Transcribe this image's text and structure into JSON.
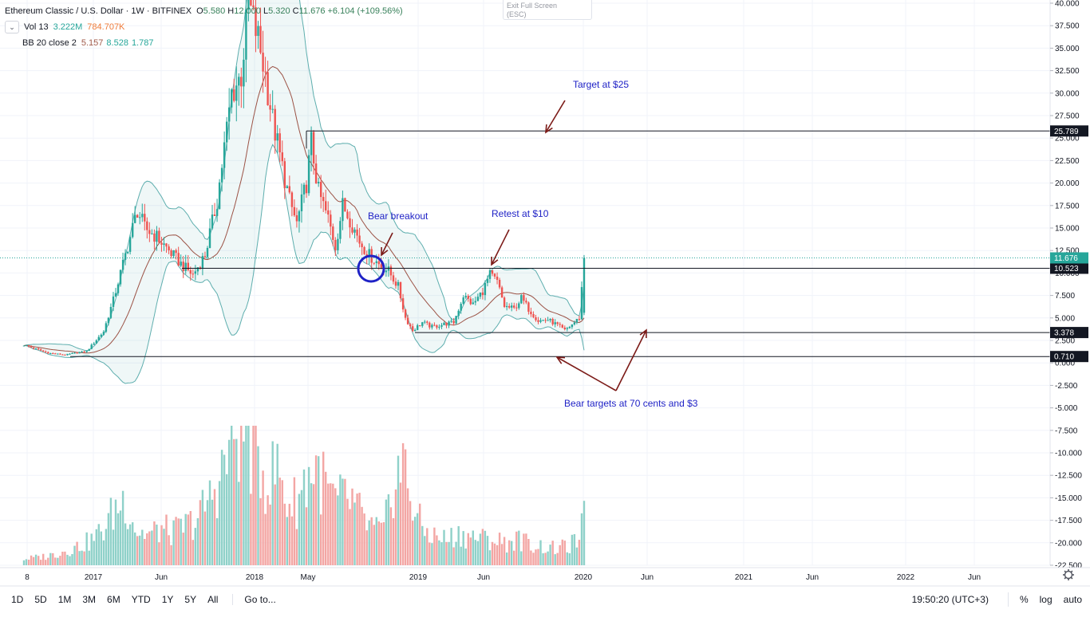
{
  "legend": {
    "symbol": "Ethereum Classic / U.S. Dollar · 1W · BITFINEX",
    "ohlc": {
      "o_label": "O",
      "o": "5.580",
      "h_label": "H",
      "h": "12.000",
      "l_label": "L",
      "l": "5.320",
      "c_label": "C",
      "c": "11.676",
      "change": "+6.104 (+109.56%)"
    },
    "vol_label": "Vol 13",
    "vol_value_1": "3.222M",
    "vol_value_2": "784.707K",
    "bb_label": "BB 20 close 2",
    "bb_basis": "5.157",
    "bb_upper": "8.528",
    "bb_lower": "1.787"
  },
  "exit_full_screen": {
    "line1": "Exit Full Screen",
    "line2": "(ESC)"
  },
  "bottom": {
    "timeframes": [
      "1D",
      "5D",
      "1M",
      "3M",
      "6M",
      "YTD",
      "1Y",
      "5Y",
      "All"
    ],
    "goto": "Go to...",
    "clock": "19:50:20 (UTC+3)",
    "percent": "%",
    "log": "log",
    "auto": "auto"
  },
  "colors": {
    "up": "#26a69a",
    "down": "#ef5350",
    "up_vol": "#8fd1c9",
    "down_vol": "#f3a6a4",
    "bb_band": "#5eaeae",
    "bb_basis": "#9b5245",
    "annotation": "#1f22c6",
    "arrow": "#7c1b18"
  },
  "chart_data": {
    "type": "candlestick",
    "ylim": [
      -22.5,
      40
    ],
    "yticks": [
      "40.000",
      "37.500",
      "35.000",
      "32.500",
      "30.000",
      "27.500",
      "25.000",
      "22.500",
      "20.000",
      "17.500",
      "15.000",
      "12.500",
      "10.000",
      "7.500",
      "5.000",
      "2.500",
      "0.000",
      "-2.500",
      "-5.000",
      "-7.500",
      "-10.000",
      "-12.500",
      "-15.000",
      "-17.500",
      "-20.000",
      "-22.500"
    ],
    "xticks": [
      "8",
      "2017",
      "Jun",
      "2018",
      "May",
      "2019",
      "Jun",
      "2020",
      "Jun",
      "2021",
      "Jun",
      "2022",
      "Jun"
    ],
    "horizontal_levels": [
      {
        "value": 25.789,
        "label": "25.789"
      },
      {
        "value": 10.523,
        "label": "10.523"
      },
      {
        "value": 3.378,
        "label": "3.378"
      },
      {
        "value": 0.71,
        "label": "0.710"
      }
    ],
    "last_price": {
      "value": 11.676,
      "label": "11.676"
    },
    "annotations": [
      {
        "text": "Target at $25"
      },
      {
        "text": "Bear breakout"
      },
      {
        "text": "Retest at $10"
      },
      {
        "text": "Bear targets at 70 cents and $3"
      }
    ],
    "price_keypoints": [
      [
        0,
        2.0
      ],
      [
        10,
        1.1
      ],
      [
        17,
        0.9
      ],
      [
        26,
        1.3
      ],
      [
        33,
        3.5
      ],
      [
        37,
        7.0
      ],
      [
        42,
        12.0
      ],
      [
        47,
        17.0
      ],
      [
        50,
        15.0
      ],
      [
        55,
        14.0
      ],
      [
        60,
        12.5
      ],
      [
        65,
        11.0
      ],
      [
        70,
        9.8
      ],
      [
        75,
        12.0
      ],
      [
        80,
        18.0
      ],
      [
        83,
        24.0
      ],
      [
        86,
        30.0
      ],
      [
        90,
        32.0
      ],
      [
        93,
        40.0
      ],
      [
        97,
        36.0
      ],
      [
        100,
        32.0
      ],
      [
        103,
        27.0
      ],
      [
        106,
        23.0
      ],
      [
        110,
        18.0
      ],
      [
        113,
        15.5
      ],
      [
        117,
        20.0
      ],
      [
        119,
        24.5
      ],
      [
        122,
        19.0
      ],
      [
        126,
        16.0
      ],
      [
        129,
        13.0
      ],
      [
        132,
        17.5
      ],
      [
        135,
        16.0
      ],
      [
        139,
        13.5
      ],
      [
        143,
        12.0
      ],
      [
        147,
        11.0
      ],
      [
        151,
        10.2
      ],
      [
        155,
        8.5
      ],
      [
        158,
        5.0
      ],
      [
        161,
        3.6
      ],
      [
        165,
        4.5
      ],
      [
        169,
        4.0
      ],
      [
        174,
        4.3
      ],
      [
        178,
        4.5
      ],
      [
        182,
        7.5
      ],
      [
        186,
        6.5
      ],
      [
        190,
        8.0
      ],
      [
        193,
        9.8
      ],
      [
        196,
        9.0
      ],
      [
        199,
        6.3
      ],
      [
        203,
        6.0
      ],
      [
        206,
        7.2
      ],
      [
        209,
        6.0
      ],
      [
        213,
        4.7
      ],
      [
        217,
        4.8
      ],
      [
        221,
        4.2
      ],
      [
        224,
        3.6
      ],
      [
        228,
        4.5
      ],
      [
        230,
        5.0
      ],
      [
        232,
        11.676
      ]
    ],
    "volume_keypoints": [
      [
        0,
        0.6
      ],
      [
        10,
        0.9
      ],
      [
        20,
        1.6
      ],
      [
        28,
        2.4
      ],
      [
        33,
        3.5
      ],
      [
        38,
        5.5
      ],
      [
        42,
        6.5
      ],
      [
        47,
        3.2
      ],
      [
        52,
        3.0
      ],
      [
        57,
        3.5
      ],
      [
        62,
        3.2
      ],
      [
        67,
        3.8
      ],
      [
        72,
        4.5
      ],
      [
        77,
        6.5
      ],
      [
        82,
        9.0
      ],
      [
        86,
        12.0
      ],
      [
        90,
        13.5
      ],
      [
        93,
        12.0
      ],
      [
        97,
        10.5
      ],
      [
        101,
        8.0
      ],
      [
        105,
        9.5
      ],
      [
        109,
        6.0
      ],
      [
        113,
        6.2
      ],
      [
        117,
        8.5
      ],
      [
        121,
        9.5
      ],
      [
        125,
        7.5
      ],
      [
        129,
        6.0
      ],
      [
        133,
        6.5
      ],
      [
        137,
        5.8
      ],
      [
        141,
        4.2
      ],
      [
        145,
        3.5
      ],
      [
        149,
        3.2
      ],
      [
        153,
        8.0
      ],
      [
        157,
        9.8
      ],
      [
        161,
        6.0
      ],
      [
        165,
        3.5
      ],
      [
        170,
        2.8
      ],
      [
        175,
        2.5
      ],
      [
        180,
        3.0
      ],
      [
        185,
        2.8
      ],
      [
        190,
        2.6
      ],
      [
        195,
        2.4
      ],
      [
        200,
        2.2
      ],
      [
        205,
        2.5
      ],
      [
        210,
        2.0
      ],
      [
        215,
        1.8
      ],
      [
        220,
        1.6
      ],
      [
        225,
        1.8
      ],
      [
        230,
        2.5
      ],
      [
        232,
        4.5
      ]
    ]
  }
}
